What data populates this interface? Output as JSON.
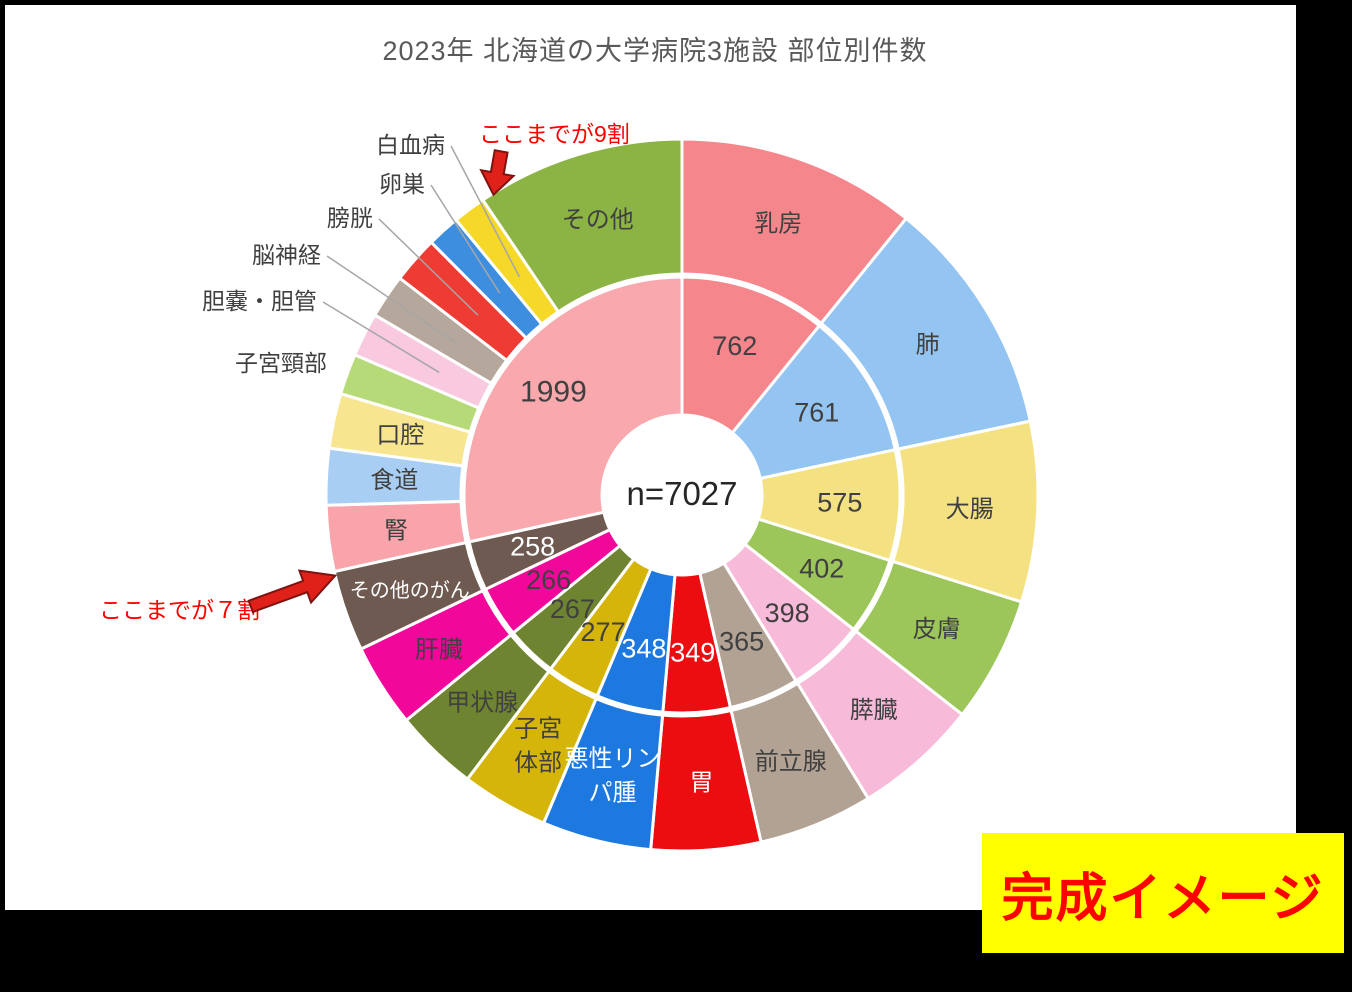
{
  "title": "2023年 北海道の大学病院3施設 部位別件数",
  "center_label": "n=7027",
  "annotations": {
    "ninety_percent": "ここまでが9割",
    "seventy_percent": "ここまでが７割"
  },
  "stamp": {
    "label": "完成イメージ",
    "bg": "#ffff00",
    "color": "#ff0000"
  },
  "frame": {
    "background": "#000000",
    "content_background": "#ffffff"
  },
  "chart_data": {
    "type": "pie",
    "subtype": "nested-donut",
    "title": "2023年 北海道の大学病院3施設 部位別件数",
    "total": 7027,
    "center_label": "n=7027",
    "start_angle_deg": 0,
    "direction": "clockwise",
    "inner_ring_note": "inner ring shows values of the 12 largest categories; all remaining categories are aggregated into one light-pink slice labeled 1999",
    "aggregate_slice": {
      "value": 1999,
      "color": "#F9A8AE",
      "text": "dark"
    },
    "categories": [
      {
        "name": "乳房",
        "value": 762,
        "show_value": true,
        "color": "#F5868C",
        "text": "dark"
      },
      {
        "name": "肺",
        "value": 761,
        "show_value": true,
        "color": "#94C4F1",
        "text": "dark"
      },
      {
        "name": "大腸",
        "value": 575,
        "show_value": true,
        "color": "#F4E182",
        "text": "dark"
      },
      {
        "name": "皮膚",
        "value": 402,
        "show_value": true,
        "color": "#9CC659",
        "text": "dark"
      },
      {
        "name": "膵臓",
        "value": 398,
        "show_value": true,
        "color": "#F8BAD9",
        "text": "dark"
      },
      {
        "name": "前立腺",
        "value": 365,
        "show_value": true,
        "color": "#B2A294",
        "text": "dark"
      },
      {
        "name": "胃",
        "value": 349,
        "show_value": true,
        "color": "#EB0D10",
        "text": "white"
      },
      {
        "name": "悪性リンパ腫",
        "value": 348,
        "show_value": true,
        "color": "#1D78DF",
        "text": "white"
      },
      {
        "name": "子宮体部",
        "value": 277,
        "show_value": true,
        "color": "#D5B50A",
        "text": "dark"
      },
      {
        "name": "甲状腺",
        "value": 267,
        "show_value": true,
        "color": "#6F8430",
        "text": "dark"
      },
      {
        "name": "肝臓",
        "value": 266,
        "show_value": true,
        "color": "#F2079B",
        "text": "dark"
      },
      {
        "name": "その他のがん",
        "value": 258,
        "show_value": true,
        "color": "#6E5A50",
        "text": "white"
      },
      {
        "name": "腎",
        "value": 210,
        "estimated": true,
        "show_value": false,
        "color": "#F8A4AA",
        "text": "dark"
      },
      {
        "name": "食道",
        "value": 180,
        "estimated": true,
        "show_value": false,
        "color": "#A8CFF3",
        "text": "dark"
      },
      {
        "name": "口腔",
        "value": 175,
        "estimated": true,
        "show_value": false,
        "color": "#F7E58F",
        "text": "dark"
      },
      {
        "name": "子宮頸部",
        "value": 130,
        "estimated": true,
        "show_value": false,
        "color": "#B7DA78",
        "text": "dark",
        "label_outside": true
      },
      {
        "name": "胆嚢・胆管",
        "value": 140,
        "estimated": true,
        "show_value": false,
        "color": "#F8C9DF",
        "text": "dark",
        "label_outside": true
      },
      {
        "name": "脳神経",
        "value": 140,
        "estimated": true,
        "show_value": false,
        "color": "#B5A79B",
        "text": "dark",
        "label_outside": true
      },
      {
        "name": "膀胱",
        "value": 150,
        "estimated": true,
        "show_value": false,
        "color": "#EE3B33",
        "text": "dark",
        "label_outside": true
      },
      {
        "name": "卵巣",
        "value": 105,
        "estimated": true,
        "show_value": false,
        "color": "#3E8EE0",
        "text": "dark",
        "label_outside": true
      },
      {
        "name": "白血病",
        "value": 105,
        "estimated": true,
        "show_value": false,
        "color": "#F6D829",
        "text": "dark",
        "label_outside": true
      },
      {
        "name": "その他",
        "value": 664,
        "estimated": true,
        "show_value": false,
        "color": "#8CB445",
        "text": "dark"
      }
    ]
  }
}
